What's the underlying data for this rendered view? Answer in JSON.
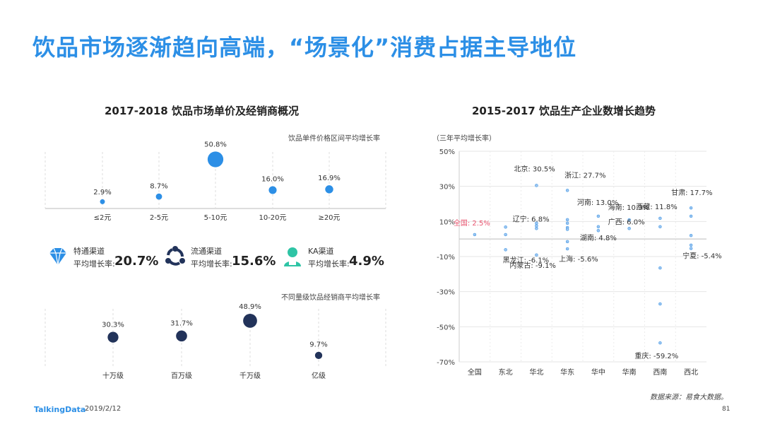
{
  "page": {
    "title": "饮品市场逐渐趋向高端，“场景化”消费占据主导地位"
  },
  "left": {
    "title": "2017-2018  饮品市场单价及经销商概况",
    "top_note": "饮品单件价格区间平均增长率",
    "bottom_note": "不同量级饮品经销商平均增长率",
    "channels": [
      {
        "name": "特通渠道",
        "label": "平均增长率:",
        "value": "20.7%",
        "icon": "diamond-icon"
      },
      {
        "name": "流通渠道",
        "label": "平均增长率:",
        "value": "15.6%",
        "icon": "network-icon"
      },
      {
        "name": "KA渠道",
        "label": "平均增长率:",
        "value": "4.9%",
        "icon": "person-icon"
      }
    ]
  },
  "right": {
    "title": "2015-2017  饮品生产企业数增长趋势",
    "unit": "（三年平均增长率）",
    "source": "数据来源：易食大数据。"
  },
  "footer": {
    "brand": "TalkingData",
    "date": "2019/2/12",
    "page": "81"
  },
  "colors": {
    "accent": "#2c8fe6",
    "dark": "#22335a",
    "red": "#e8536e"
  },
  "chart_data": [
    {
      "type": "scatter",
      "title": "饮品单件价格区间平均增长率",
      "categories": [
        "≤2元",
        "2-5元",
        "5-10元",
        "10-20元",
        "≥20元"
      ],
      "values": [
        2.9,
        8.7,
        50.8,
        16.0,
        16.9
      ],
      "labels": [
        "2.9%",
        "8.7%",
        "50.8%",
        "16.0%",
        "16.9%"
      ]
    },
    {
      "type": "scatter",
      "title": "不同量级饮品经销商平均增长率",
      "categories": [
        "十万级",
        "百万级",
        "千万级",
        "亿级"
      ],
      "values": [
        30.3,
        31.7,
        48.9,
        9.7
      ],
      "labels": [
        "30.3%",
        "31.7%",
        "48.9%",
        "9.7%"
      ]
    },
    {
      "type": "scatter",
      "title": "2015-2017  饮品生产企业数增长趋势",
      "ylabel": "（三年平均增长率）",
      "ylim": [
        -70,
        50
      ],
      "yticks": [
        50,
        30,
        10,
        -10,
        -30,
        -50,
        -70
      ],
      "ytick_labels": [
        "50%",
        "30%",
        "10%",
        "-10%",
        "-30%",
        "-50%",
        "-70%"
      ],
      "categories": [
        "全国",
        "东北",
        "华北",
        "华东",
        "华中",
        "华南",
        "西南",
        "西北"
      ],
      "points": [
        {
          "region": 0,
          "values": [
            2.5
          ]
        },
        {
          "region": 1,
          "values": [
            6.8,
            2.5,
            -6.1
          ]
        },
        {
          "region": 2,
          "values": [
            30.5,
            9.0,
            7.5,
            6.0,
            -9.1
          ]
        },
        {
          "region": 3,
          "values": [
            27.7,
            11.0,
            9.0,
            6.5,
            5.5,
            -1.5,
            -5.6
          ]
        },
        {
          "region": 4,
          "values": [
            13.0,
            7.0,
            4.8
          ]
        },
        {
          "region": 5,
          "values": [
            10.9,
            6.0
          ]
        },
        {
          "region": 6,
          "values": [
            11.8,
            7.0,
            -16.5,
            -37.0,
            -59.2
          ]
        },
        {
          "region": 7,
          "values": [
            17.7,
            13.0,
            2.0,
            -3.5,
            -5.4
          ]
        }
      ],
      "annotations": [
        {
          "text": "全国: 2.5%",
          "region": 0,
          "value": 2.5,
          "highlight": true
        },
        {
          "text": "辽宁: 6.8%",
          "region": 1,
          "value": 6.8
        },
        {
          "text": "黑龙江: -6.1%",
          "region": 1,
          "value": -6.1
        },
        {
          "text": "北京: 30.5%",
          "region": 2,
          "value": 30.5
        },
        {
          "text": "内蒙古: -9.1%",
          "region": 2,
          "value": -9.1
        },
        {
          "text": "浙江: 27.7%",
          "region": 3,
          "value": 27.7
        },
        {
          "text": "上海: -5.6%",
          "region": 3,
          "value": -5.6
        },
        {
          "text": "河南: 13.0%",
          "region": 4,
          "value": 13.0
        },
        {
          "text": "湖南: 4.8%",
          "region": 4,
          "value": 4.8
        },
        {
          "text": "海南: 10.9%",
          "region": 5,
          "value": 10.9
        },
        {
          "text": "广西: 6.0%",
          "region": 5,
          "value": 6.0
        },
        {
          "text": "西藏: 11.8%",
          "region": 6,
          "value": 11.8
        },
        {
          "text": "重庆: -59.2%",
          "region": 6,
          "value": -59.2
        },
        {
          "text": "甘肃: 17.7%",
          "region": 7,
          "value": 17.7
        },
        {
          "text": "宁夏: -5.4%",
          "region": 7,
          "value": -5.4
        }
      ]
    }
  ]
}
